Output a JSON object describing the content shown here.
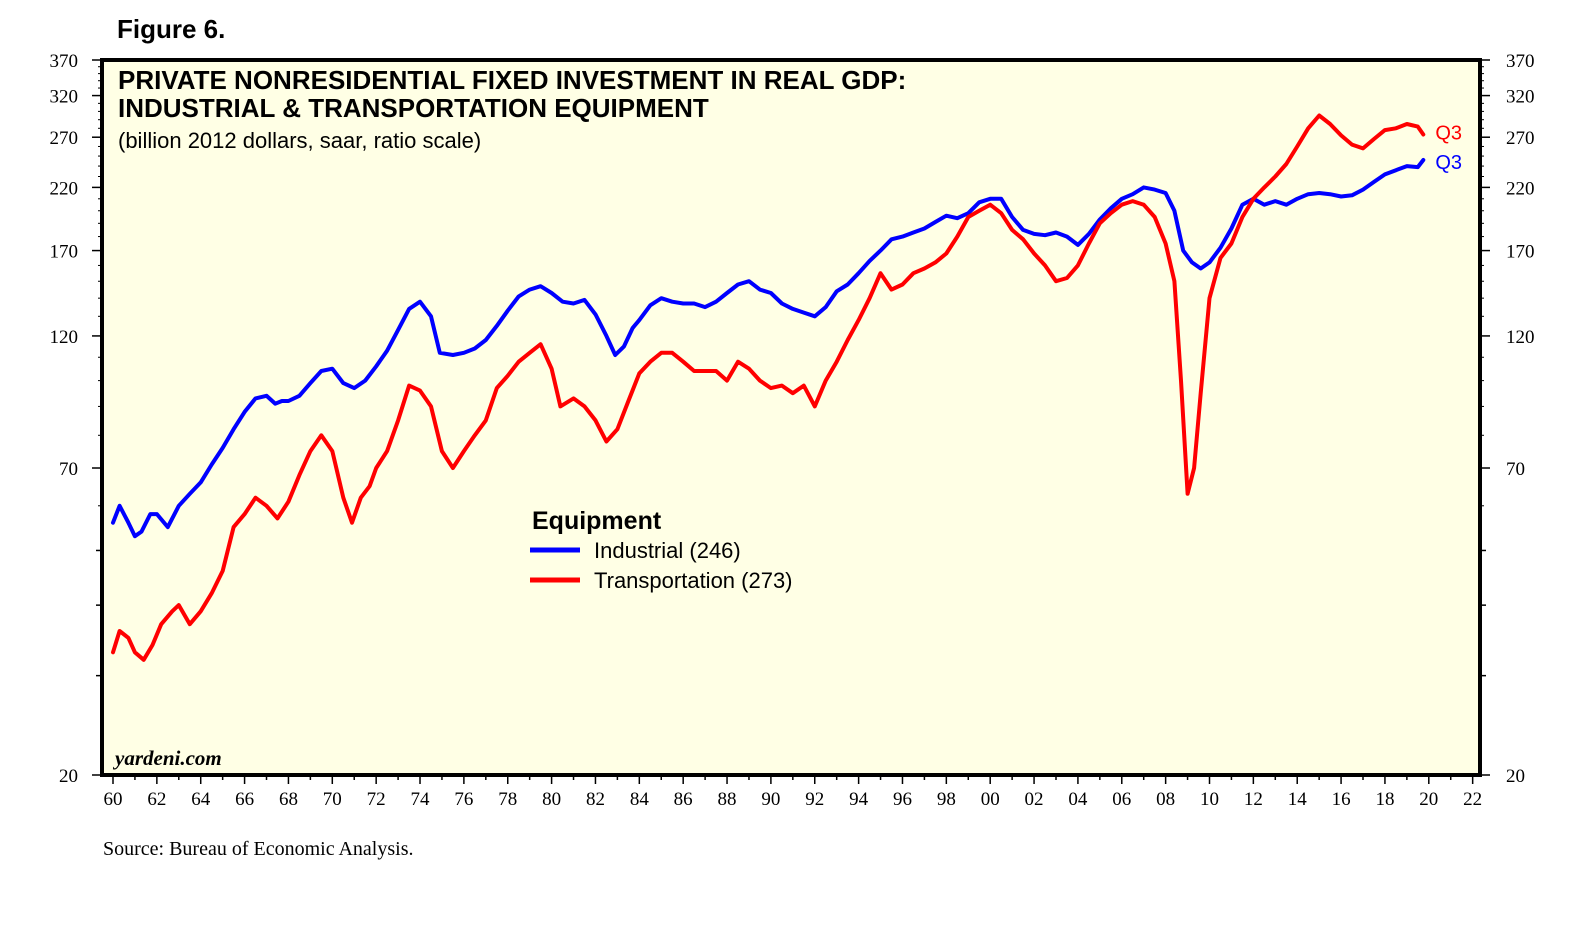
{
  "figure_label": "Figure 6.",
  "source": "Source: Bureau of Economic Analysis.",
  "chart_data": {
    "type": "line",
    "title_line1": "PRIVATE NONRESIDENTIAL FIXED INVESTMENT IN REAL GDP:",
    "title_line2": "INDUSTRIAL & TRANSPORTATION EQUIPMENT",
    "subtitle": "(billion 2012 dollars, saar, ratio scale)",
    "watermark": "yardeni.com",
    "scale": "log",
    "ylim": [
      20,
      370
    ],
    "xlim": [
      1959.5,
      2022.5
    ],
    "y_ticks": [
      370,
      320,
      270,
      220,
      170,
      120,
      70,
      20
    ],
    "y_minor_ticks": [
      50,
      40,
      30
    ],
    "x_ticks": [
      "60",
      "62",
      "64",
      "66",
      "68",
      "70",
      "72",
      "74",
      "76",
      "78",
      "80",
      "82",
      "84",
      "86",
      "88",
      "90",
      "92",
      "94",
      "96",
      "98",
      "00",
      "02",
      "04",
      "06",
      "08",
      "10",
      "12",
      "14",
      "16",
      "18",
      "20",
      "22"
    ],
    "legend": {
      "title": "Equipment",
      "entries": [
        "Industrial (246)",
        "Transportation (273)"
      ]
    },
    "end_labels": [
      "Q3",
      "Q3"
    ],
    "series": [
      {
        "name": "Industrial (246)",
        "color": "#0000ff",
        "end_label": "Q3",
        "points": [
          [
            1960.0,
            56
          ],
          [
            1960.3,
            60
          ],
          [
            1960.7,
            56
          ],
          [
            1961.0,
            53
          ],
          [
            1961.3,
            54
          ],
          [
            1961.7,
            58
          ],
          [
            1962.0,
            58
          ],
          [
            1962.5,
            55
          ],
          [
            1963.0,
            60
          ],
          [
            1963.5,
            63
          ],
          [
            1964.0,
            66
          ],
          [
            1964.5,
            71
          ],
          [
            1965.0,
            76
          ],
          [
            1965.5,
            82
          ],
          [
            1966.0,
            88
          ],
          [
            1966.5,
            93
          ],
          [
            1967.0,
            94
          ],
          [
            1967.4,
            91
          ],
          [
            1967.7,
            92
          ],
          [
            1968.0,
            92
          ],
          [
            1968.5,
            94
          ],
          [
            1969.0,
            99
          ],
          [
            1969.5,
            104
          ],
          [
            1970.0,
            105
          ],
          [
            1970.5,
            99
          ],
          [
            1971.0,
            97
          ],
          [
            1971.5,
            100
          ],
          [
            1972.0,
            106
          ],
          [
            1972.5,
            113
          ],
          [
            1973.0,
            123
          ],
          [
            1973.5,
            134
          ],
          [
            1974.0,
            138
          ],
          [
            1974.5,
            130
          ],
          [
            1974.9,
            112
          ],
          [
            1975.5,
            111
          ],
          [
            1976.0,
            112
          ],
          [
            1976.5,
            114
          ],
          [
            1977.0,
            118
          ],
          [
            1977.5,
            125
          ],
          [
            1978.0,
            133
          ],
          [
            1978.5,
            141
          ],
          [
            1979.0,
            145
          ],
          [
            1979.5,
            147
          ],
          [
            1980.0,
            143
          ],
          [
            1980.5,
            138
          ],
          [
            1981.0,
            137
          ],
          [
            1981.5,
            139
          ],
          [
            1982.0,
            131
          ],
          [
            1982.5,
            120
          ],
          [
            1982.9,
            111
          ],
          [
            1983.3,
            115
          ],
          [
            1983.7,
            124
          ],
          [
            1984.0,
            128
          ],
          [
            1984.5,
            136
          ],
          [
            1985.0,
            140
          ],
          [
            1985.5,
            138
          ],
          [
            1986.0,
            137
          ],
          [
            1986.5,
            137
          ],
          [
            1987.0,
            135
          ],
          [
            1987.5,
            138
          ],
          [
            1988.0,
            143
          ],
          [
            1988.5,
            148
          ],
          [
            1989.0,
            150
          ],
          [
            1989.5,
            145
          ],
          [
            1990.0,
            143
          ],
          [
            1990.5,
            137
          ],
          [
            1991.0,
            134
          ],
          [
            1991.5,
            132
          ],
          [
            1992.0,
            130
          ],
          [
            1992.5,
            135
          ],
          [
            1993.0,
            144
          ],
          [
            1993.5,
            148
          ],
          [
            1994.0,
            155
          ],
          [
            1994.5,
            163
          ],
          [
            1995.0,
            170
          ],
          [
            1995.5,
            178
          ],
          [
            1996.0,
            180
          ],
          [
            1996.5,
            183
          ],
          [
            1997.0,
            186
          ],
          [
            1997.5,
            191
          ],
          [
            1998.0,
            196
          ],
          [
            1998.5,
            194
          ],
          [
            1999.0,
            198
          ],
          [
            1999.5,
            207
          ],
          [
            2000.0,
            210
          ],
          [
            2000.5,
            210
          ],
          [
            2001.0,
            195
          ],
          [
            2001.5,
            185
          ],
          [
            2002.0,
            182
          ],
          [
            2002.5,
            181
          ],
          [
            2003.0,
            183
          ],
          [
            2003.5,
            180
          ],
          [
            2004.0,
            174
          ],
          [
            2004.5,
            182
          ],
          [
            2005.0,
            193
          ],
          [
            2005.5,
            202
          ],
          [
            2006.0,
            210
          ],
          [
            2006.5,
            214
          ],
          [
            2007.0,
            220
          ],
          [
            2007.5,
            218
          ],
          [
            2008.0,
            215
          ],
          [
            2008.4,
            200
          ],
          [
            2008.8,
            170
          ],
          [
            2009.2,
            162
          ],
          [
            2009.6,
            158
          ],
          [
            2010.0,
            162
          ],
          [
            2010.5,
            172
          ],
          [
            2011.0,
            186
          ],
          [
            2011.5,
            205
          ],
          [
            2012.0,
            210
          ],
          [
            2012.5,
            205
          ],
          [
            2013.0,
            208
          ],
          [
            2013.5,
            205
          ],
          [
            2014.0,
            210
          ],
          [
            2014.5,
            214
          ],
          [
            2015.0,
            215
          ],
          [
            2015.5,
            214
          ],
          [
            2016.0,
            212
          ],
          [
            2016.5,
            213
          ],
          [
            2017.0,
            218
          ],
          [
            2017.5,
            225
          ],
          [
            2018.0,
            232
          ],
          [
            2018.5,
            236
          ],
          [
            2019.0,
            240
          ],
          [
            2019.5,
            239
          ],
          [
            2019.75,
            246
          ]
        ]
      },
      {
        "name": "Transportation (273)",
        "color": "#ff0000",
        "end_label": "Q3",
        "points": [
          [
            1960.0,
            33
          ],
          [
            1960.3,
            36
          ],
          [
            1960.7,
            35
          ],
          [
            1961.0,
            33
          ],
          [
            1961.4,
            32
          ],
          [
            1961.8,
            34
          ],
          [
            1962.2,
            37
          ],
          [
            1962.7,
            39
          ],
          [
            1963.0,
            40
          ],
          [
            1963.5,
            37
          ],
          [
            1964.0,
            39
          ],
          [
            1964.5,
            42
          ],
          [
            1965.0,
            46
          ],
          [
            1965.5,
            55
          ],
          [
            1966.0,
            58
          ],
          [
            1966.5,
            62
          ],
          [
            1967.0,
            60
          ],
          [
            1967.5,
            57
          ],
          [
            1968.0,
            61
          ],
          [
            1968.5,
            68
          ],
          [
            1969.0,
            75
          ],
          [
            1969.5,
            80
          ],
          [
            1970.0,
            75
          ],
          [
            1970.5,
            62
          ],
          [
            1970.9,
            56
          ],
          [
            1971.3,
            62
          ],
          [
            1971.7,
            65
          ],
          [
            1972.0,
            70
          ],
          [
            1972.5,
            75
          ],
          [
            1973.0,
            85
          ],
          [
            1973.5,
            98
          ],
          [
            1974.0,
            96
          ],
          [
            1974.5,
            90
          ],
          [
            1975.0,
            75
          ],
          [
            1975.5,
            70
          ],
          [
            1976.0,
            75
          ],
          [
            1976.5,
            80
          ],
          [
            1977.0,
            85
          ],
          [
            1977.5,
            97
          ],
          [
            1978.0,
            102
          ],
          [
            1978.5,
            108
          ],
          [
            1979.0,
            112
          ],
          [
            1979.5,
            116
          ],
          [
            1980.0,
            105
          ],
          [
            1980.4,
            90
          ],
          [
            1981.0,
            93
          ],
          [
            1981.5,
            90
          ],
          [
            1982.0,
            85
          ],
          [
            1982.5,
            78
          ],
          [
            1983.0,
            82
          ],
          [
            1983.5,
            92
          ],
          [
            1984.0,
            103
          ],
          [
            1984.5,
            108
          ],
          [
            1985.0,
            112
          ],
          [
            1985.5,
            112
          ],
          [
            1986.0,
            108
          ],
          [
            1986.5,
            104
          ],
          [
            1987.0,
            104
          ],
          [
            1987.5,
            104
          ],
          [
            1988.0,
            100
          ],
          [
            1988.5,
            108
          ],
          [
            1989.0,
            105
          ],
          [
            1989.5,
            100
          ],
          [
            1990.0,
            97
          ],
          [
            1990.5,
            98
          ],
          [
            1991.0,
            95
          ],
          [
            1991.5,
            98
          ],
          [
            1992.0,
            90
          ],
          [
            1992.5,
            100
          ],
          [
            1993.0,
            108
          ],
          [
            1993.5,
            118
          ],
          [
            1994.0,
            128
          ],
          [
            1994.5,
            140
          ],
          [
            1995.0,
            155
          ],
          [
            1995.5,
            145
          ],
          [
            1996.0,
            148
          ],
          [
            1996.5,
            155
          ],
          [
            1997.0,
            158
          ],
          [
            1997.5,
            162
          ],
          [
            1998.0,
            168
          ],
          [
            1998.5,
            180
          ],
          [
            1999.0,
            195
          ],
          [
            1999.5,
            200
          ],
          [
            2000.0,
            205
          ],
          [
            2000.5,
            198
          ],
          [
            2001.0,
            185
          ],
          [
            2001.5,
            178
          ],
          [
            2002.0,
            168
          ],
          [
            2002.5,
            160
          ],
          [
            2003.0,
            150
          ],
          [
            2003.5,
            152
          ],
          [
            2004.0,
            160
          ],
          [
            2004.5,
            175
          ],
          [
            2005.0,
            190
          ],
          [
            2005.5,
            198
          ],
          [
            2006.0,
            205
          ],
          [
            2006.5,
            208
          ],
          [
            2007.0,
            205
          ],
          [
            2007.5,
            195
          ],
          [
            2008.0,
            175
          ],
          [
            2008.4,
            150
          ],
          [
            2008.7,
            100
          ],
          [
            2009.0,
            63
          ],
          [
            2009.3,
            70
          ],
          [
            2009.6,
            95
          ],
          [
            2010.0,
            140
          ],
          [
            2010.5,
            165
          ],
          [
            2011.0,
            175
          ],
          [
            2011.5,
            195
          ],
          [
            2012.0,
            210
          ],
          [
            2012.5,
            220
          ],
          [
            2013.0,
            230
          ],
          [
            2013.5,
            242
          ],
          [
            2014.0,
            260
          ],
          [
            2014.5,
            280
          ],
          [
            2015.0,
            295
          ],
          [
            2015.5,
            285
          ],
          [
            2016.0,
            272
          ],
          [
            2016.5,
            262
          ],
          [
            2017.0,
            258
          ],
          [
            2017.5,
            268
          ],
          [
            2018.0,
            278
          ],
          [
            2018.5,
            280
          ],
          [
            2019.0,
            285
          ],
          [
            2019.5,
            282
          ],
          [
            2019.75,
            273
          ]
        ]
      }
    ]
  }
}
